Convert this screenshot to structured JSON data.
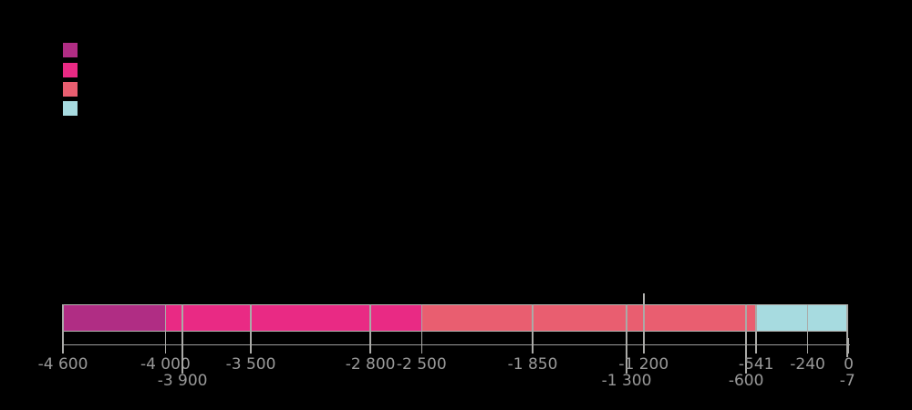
{
  "background_color": "#000000",
  "legend": {
    "position": "top-left",
    "items": [
      {
        "swatch_color": "#b02d84"
      },
      {
        "swatch_color": "#e92a84"
      },
      {
        "swatch_color": "#e95e70"
      },
      {
        "swatch_color": "#a7dbe0"
      }
    ]
  },
  "chart_data": {
    "type": "bar",
    "variant": "horizontal-timeline",
    "x_axis": {
      "min": -4600,
      "max": 0
    },
    "bar_range": {
      "start": -4600,
      "end": -7
    },
    "segments": [
      {
        "start": -4600,
        "end": -4000,
        "color_key": "purple"
      },
      {
        "start": -4000,
        "end": -3900,
        "color_key": "pink"
      },
      {
        "start": -3900,
        "end": -3500,
        "color_key": "pink"
      },
      {
        "start": -3500,
        "end": -2800,
        "color_key": "pink"
      },
      {
        "start": -2800,
        "end": -2500,
        "color_key": "pink"
      },
      {
        "start": -2500,
        "end": -1850,
        "color_key": "salmon"
      },
      {
        "start": -1850,
        "end": -1300,
        "color_key": "salmon"
      },
      {
        "start": -1300,
        "end": -1200,
        "color_key": "salmon"
      },
      {
        "start": -1200,
        "end": -600,
        "color_key": "salmon"
      },
      {
        "start": -600,
        "end": -541,
        "color_key": "salmon"
      },
      {
        "start": -541,
        "end": -240,
        "color_key": "blue"
      },
      {
        "start": -240,
        "end": -7,
        "color_key": "blue"
      }
    ],
    "ticks": [
      {
        "value": -4600,
        "label": "-4 600",
        "row": 1
      },
      {
        "value": -4000,
        "label": "-4 000",
        "row": 1
      },
      {
        "value": -3900,
        "label": "-3 900",
        "row": 2
      },
      {
        "value": -3500,
        "label": "-3 500",
        "row": 1
      },
      {
        "value": -2800,
        "label": "-2 800",
        "row": 1
      },
      {
        "value": -2500,
        "label": "-2 500",
        "row": 1
      },
      {
        "value": -1850,
        "label": "-1 850",
        "row": 1
      },
      {
        "value": -1300,
        "label": "-1 300",
        "row": 2
      },
      {
        "value": -1200,
        "label": "-1 200",
        "row": 1
      },
      {
        "value": -600,
        "label": "-600",
        "row": 2
      },
      {
        "value": -541,
        "label": "-541",
        "row": 1
      },
      {
        "value": -240,
        "label": "-240",
        "row": 1
      },
      {
        "value": -7,
        "label": "-7",
        "row": 2
      },
      {
        "value": 0,
        "label": "0",
        "row": 1
      }
    ],
    "event_marker": {
      "value": -1200
    },
    "colors": {
      "purple": "#b02d84",
      "pink": "#e92a84",
      "salmon": "#e95e70",
      "blue": "#a7dbe0",
      "divider": "#aaaaa7",
      "axis": "#9c9c9c",
      "tick_label": "#999999",
      "bar_border": "#b3b3b0",
      "background": "#000000"
    }
  }
}
